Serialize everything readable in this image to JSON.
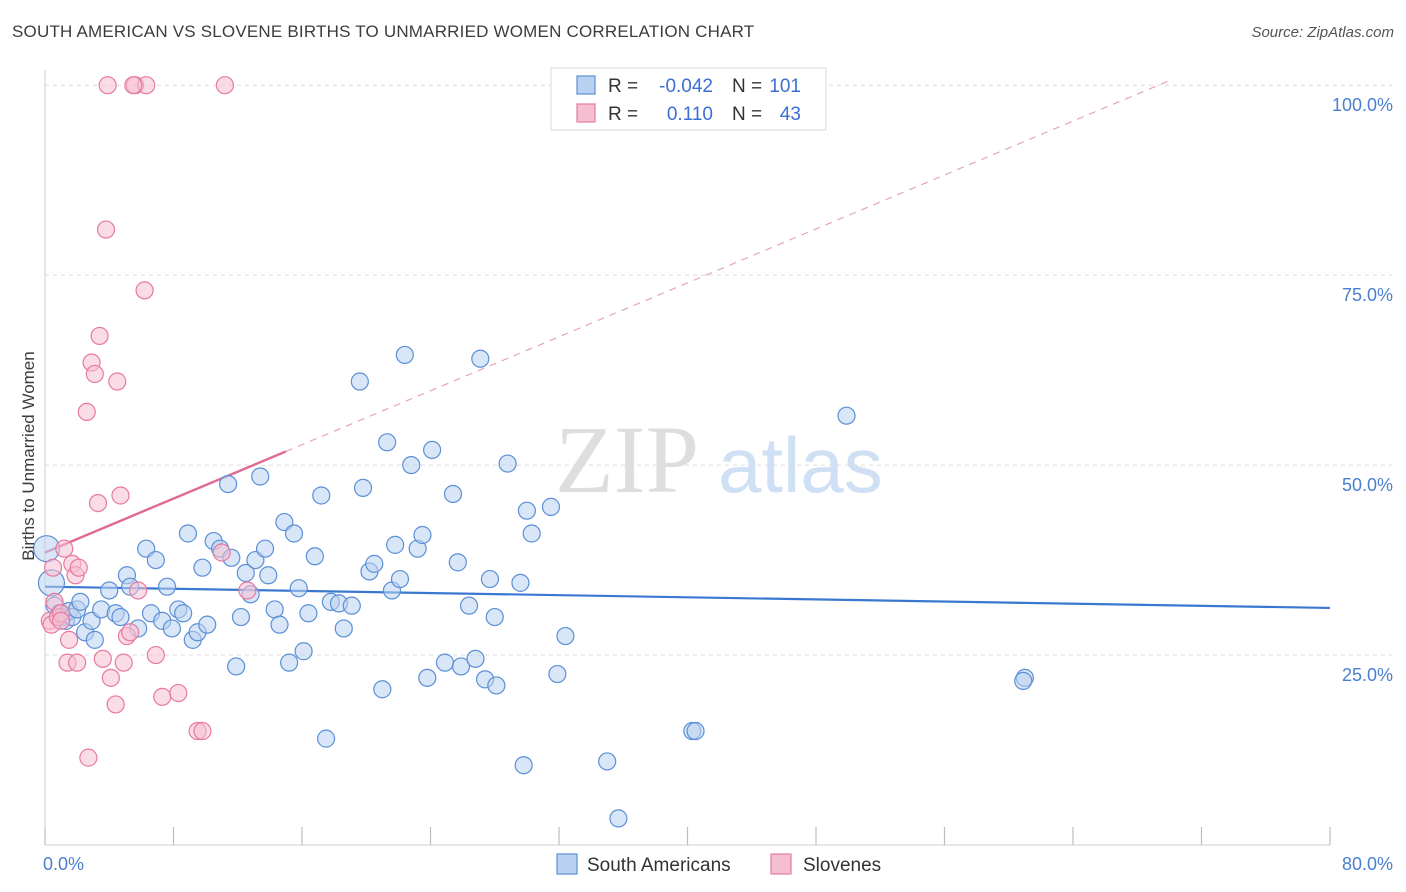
{
  "title": "SOUTH AMERICAN VS SLOVENE BIRTHS TO UNMARRIED WOMEN CORRELATION CHART",
  "source": "Source: ZipAtlas.com",
  "watermark": {
    "zip": "ZIP",
    "atlas": "atlas"
  },
  "colors": {
    "blue": "#5b8fd6",
    "blue_fill": "#b9d1f0",
    "pink": "#e77aa0",
    "pink_fill": "#f6bfd1",
    "blue_line": "#3a78d0",
    "pink_line": "#e06a93",
    "tick": "#4a7fd0"
  },
  "legend": {
    "r_label": "R =",
    "n_label": "N =",
    "rows": [
      {
        "series": "South Americans",
        "r": "-0.042",
        "n": "101"
      },
      {
        "series": "Slovenes",
        "r": "0.110",
        "n": "43"
      }
    ]
  },
  "bottom_legend": [
    "South Americans",
    "Slovenes"
  ],
  "chart_data": {
    "type": "scatter",
    "title": "SOUTH AMERICAN VS SLOVENE BIRTHS TO UNMARRIED WOMEN CORRELATION CHART",
    "xlabel": "",
    "ylabel": "Births to Unmarried Women",
    "xlim": [
      0,
      80
    ],
    "ylim": [
      0,
      102
    ],
    "x_tick_labels": {
      "min": "0.0%",
      "max": "80.0%"
    },
    "y_ticks": [
      {
        "value": 25,
        "label": "25.0%"
      },
      {
        "value": 50,
        "label": "50.0%"
      },
      {
        "value": 75,
        "label": "75.0%"
      },
      {
        "value": 100,
        "label": "100.0%"
      }
    ],
    "series": [
      {
        "name": "South Americans",
        "r": -0.042,
        "n": 101,
        "trend": {
          "x": [
            0,
            80
          ],
          "y": [
            34.0,
            31.2
          ],
          "style": "solid"
        },
        "points": [
          [
            0.1,
            39.0
          ],
          [
            0.4,
            34.5
          ],
          [
            0.6,
            31.5
          ],
          [
            0.9,
            30.5
          ],
          [
            1.1,
            30.0
          ],
          [
            1.3,
            29.5
          ],
          [
            1.5,
            30.8
          ],
          [
            1.7,
            30.0
          ],
          [
            2.0,
            31.0
          ],
          [
            2.2,
            32.0
          ],
          [
            2.5,
            28.0
          ],
          [
            2.9,
            29.5
          ],
          [
            3.1,
            27.0
          ],
          [
            3.5,
            31.0
          ],
          [
            4.0,
            33.5
          ],
          [
            4.4,
            30.5
          ],
          [
            4.7,
            30.0
          ],
          [
            5.1,
            35.5
          ],
          [
            5.3,
            34.0
          ],
          [
            5.8,
            28.5
          ],
          [
            6.3,
            39.0
          ],
          [
            6.6,
            30.5
          ],
          [
            6.9,
            37.5
          ],
          [
            7.3,
            29.5
          ],
          [
            7.6,
            34.0
          ],
          [
            7.9,
            28.5
          ],
          [
            8.3,
            31.0
          ],
          [
            8.6,
            30.5
          ],
          [
            8.9,
            41.0
          ],
          [
            9.2,
            27.0
          ],
          [
            9.5,
            28.0
          ],
          [
            9.8,
            36.5
          ],
          [
            10.1,
            29.0
          ],
          [
            10.5,
            40.0
          ],
          [
            10.9,
            39.0
          ],
          [
            11.4,
            47.5
          ],
          [
            11.6,
            37.8
          ],
          [
            11.9,
            23.5
          ],
          [
            12.2,
            30.0
          ],
          [
            12.5,
            35.8
          ],
          [
            12.8,
            33.0
          ],
          [
            13.1,
            37.5
          ],
          [
            13.4,
            48.5
          ],
          [
            13.7,
            39.0
          ],
          [
            13.9,
            35.5
          ],
          [
            14.3,
            31.0
          ],
          [
            14.6,
            29.0
          ],
          [
            14.9,
            42.5
          ],
          [
            15.2,
            24.0
          ],
          [
            15.5,
            41.0
          ],
          [
            15.8,
            33.8
          ],
          [
            16.1,
            25.5
          ],
          [
            16.4,
            30.5
          ],
          [
            16.8,
            38.0
          ],
          [
            17.2,
            46.0
          ],
          [
            17.5,
            14.0
          ],
          [
            17.8,
            32.0
          ],
          [
            18.3,
            31.8
          ],
          [
            18.6,
            28.5
          ],
          [
            19.1,
            31.5
          ],
          [
            19.6,
            61.0
          ],
          [
            19.8,
            47.0
          ],
          [
            20.2,
            36.0
          ],
          [
            20.5,
            37.0
          ],
          [
            21.0,
            20.5
          ],
          [
            21.3,
            53.0
          ],
          [
            21.6,
            33.5
          ],
          [
            21.8,
            39.5
          ],
          [
            22.1,
            35.0
          ],
          [
            22.4,
            64.5
          ],
          [
            22.8,
            50.0
          ],
          [
            23.2,
            39.0
          ],
          [
            23.5,
            40.8
          ],
          [
            23.8,
            22.0
          ],
          [
            24.1,
            52.0
          ],
          [
            24.9,
            24.0
          ],
          [
            25.4,
            46.2
          ],
          [
            25.7,
            37.2
          ],
          [
            25.9,
            23.5
          ],
          [
            26.4,
            31.5
          ],
          [
            26.8,
            24.5
          ],
          [
            27.1,
            64.0
          ],
          [
            27.4,
            21.8
          ],
          [
            27.7,
            35.0
          ],
          [
            28.1,
            21.0
          ],
          [
            28.8,
            50.2
          ],
          [
            29.6,
            34.5
          ],
          [
            29.8,
            10.5
          ],
          [
            30.0,
            44.0
          ],
          [
            30.3,
            41.0
          ],
          [
            31.5,
            44.5
          ],
          [
            31.9,
            22.5
          ],
          [
            32.4,
            27.5
          ],
          [
            35.0,
            11.0
          ],
          [
            35.7,
            3.5
          ],
          [
            40.3,
            15.0
          ],
          [
            40.5,
            15.0
          ],
          [
            49.9,
            56.5
          ],
          [
            61.0,
            22.0
          ],
          [
            60.9,
            21.6
          ],
          [
            28.0,
            30.0
          ]
        ]
      },
      {
        "name": "Slovenes",
        "r": 0.11,
        "n": 43,
        "trend": {
          "x": [
            0,
            15
          ],
          "y": [
            38.5,
            51.8
          ],
          "style": "solid",
          "extended": {
            "x": [
              15,
              70
            ],
            "y": [
              51.8,
              100.6
            ],
            "style": "dashed"
          }
        },
        "points": [
          [
            0.3,
            29.5
          ],
          [
            0.4,
            29.0
          ],
          [
            0.5,
            36.5
          ],
          [
            0.6,
            32.0
          ],
          [
            0.8,
            30.0
          ],
          [
            1.0,
            30.5
          ],
          [
            1.2,
            39.0
          ],
          [
            1.4,
            24.0
          ],
          [
            1.5,
            27.0
          ],
          [
            1.7,
            37.0
          ],
          [
            1.9,
            35.5
          ],
          [
            2.0,
            24.0
          ],
          [
            2.1,
            36.5
          ],
          [
            2.6,
            57.0
          ],
          [
            2.7,
            11.5
          ],
          [
            2.9,
            63.5
          ],
          [
            3.1,
            62.0
          ],
          [
            3.3,
            45.0
          ],
          [
            3.4,
            67.0
          ],
          [
            3.6,
            24.5
          ],
          [
            3.8,
            81.0
          ],
          [
            4.1,
            22.0
          ],
          [
            4.4,
            18.5
          ],
          [
            4.5,
            61.0
          ],
          [
            4.7,
            46.0
          ],
          [
            4.9,
            24.0
          ],
          [
            5.1,
            27.5
          ],
          [
            5.3,
            28.0
          ],
          [
            5.8,
            33.5
          ],
          [
            6.2,
            73.0
          ],
          [
            6.9,
            25.0
          ],
          [
            7.3,
            19.5
          ],
          [
            8.3,
            20.0
          ],
          [
            9.5,
            15.0
          ],
          [
            9.8,
            15.0
          ],
          [
            11.0,
            38.5
          ],
          [
            12.6,
            33.5
          ],
          [
            3.9,
            100.0
          ],
          [
            5.6,
            100.0
          ],
          [
            6.3,
            100.0
          ],
          [
            11.2,
            100.0
          ],
          [
            5.5,
            100.0
          ],
          [
            1.0,
            29.5
          ]
        ]
      }
    ]
  }
}
